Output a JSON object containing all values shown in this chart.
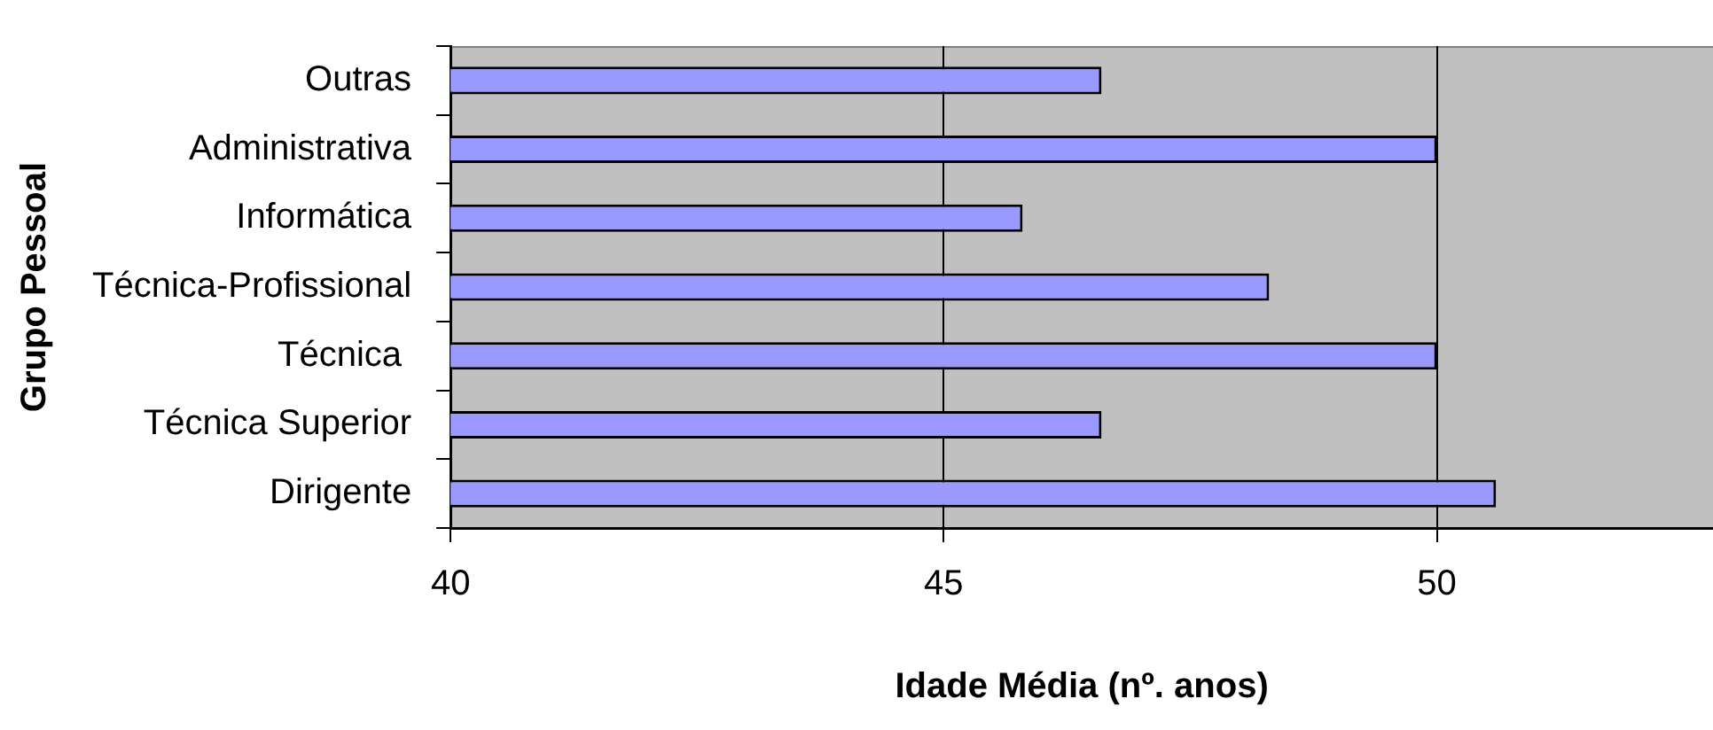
{
  "chart_data": {
    "type": "bar",
    "orientation": "horizontal",
    "xlabel": "Idade Média (nº. anos)",
    "ylabel": "Grupo Pessoal",
    "categories": [
      "Outras",
      "Administrativa",
      "Informática",
      "Técnica-Profissional",
      "Técnica ",
      "Técnica Superior",
      "Dirigente"
    ],
    "values": [
      46.6,
      50.0,
      45.8,
      48.3,
      50.0,
      46.6,
      50.6
    ],
    "color": "#9999ff",
    "xlim": [
      40,
      52.8
    ],
    "xticks": [
      40,
      45,
      50
    ],
    "grid": "x",
    "legend": false
  }
}
